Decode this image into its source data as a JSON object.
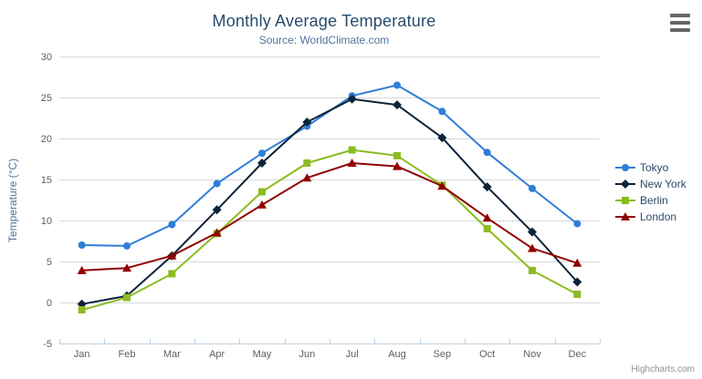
{
  "header": {
    "title": "Monthly Average Temperature",
    "subtitle": "Source: WorldClimate.com"
  },
  "credits_label": "Highcharts.com",
  "context_menu": {
    "icon": "hamburger-icon"
  },
  "chart_data": {
    "type": "line",
    "title": "Monthly Average Temperature",
    "subtitle": "Source: WorldClimate.com",
    "xlabel": "",
    "ylabel": "Temperature (°C)",
    "categories": [
      "Jan",
      "Feb",
      "Mar",
      "Apr",
      "May",
      "Jun",
      "Jul",
      "Aug",
      "Sep",
      "Oct",
      "Nov",
      "Dec"
    ],
    "ylim": [
      -5,
      30
    ],
    "y_ticks": [
      -5,
      0,
      5,
      10,
      15,
      20,
      25,
      30
    ],
    "grid": true,
    "legend_position": "right",
    "series": [
      {
        "name": "Tokyo",
        "marker": "circle",
        "color": "#2f7ed8",
        "values": [
          7.0,
          6.9,
          9.5,
          14.5,
          18.2,
          21.5,
          25.2,
          26.5,
          23.3,
          18.3,
          13.9,
          9.6
        ]
      },
      {
        "name": "New York",
        "marker": "diamond",
        "color": "#0d233a",
        "values": [
          -0.2,
          0.8,
          5.7,
          11.3,
          17.0,
          22.0,
          24.8,
          24.1,
          20.1,
          14.1,
          8.6,
          2.5
        ]
      },
      {
        "name": "Berlin",
        "marker": "square",
        "color": "#8bbc21",
        "values": [
          -0.9,
          0.6,
          3.5,
          8.4,
          13.5,
          17.0,
          18.6,
          17.9,
          14.3,
          9.0,
          3.9,
          1.0
        ]
      },
      {
        "name": "London",
        "marker": "triangle",
        "color": "#910000",
        "values": [
          3.9,
          4.2,
          5.7,
          8.5,
          11.9,
          15.2,
          17.0,
          16.6,
          14.2,
          10.3,
          6.6,
          4.8
        ]
      }
    ]
  },
  "theme": {
    "title_color": "#274b6d",
    "subtitle_color": "#4d759e",
    "axis_title_color": "#4d759e",
    "tick_label_color": "#606060",
    "gridline_color": "#d8d8d8",
    "axis_line_color": "#c0d0e0",
    "legend_text_color": "#274b6d",
    "credits_color": "#909090",
    "menu_icon_color": "#666666",
    "background": "#ffffff"
  }
}
